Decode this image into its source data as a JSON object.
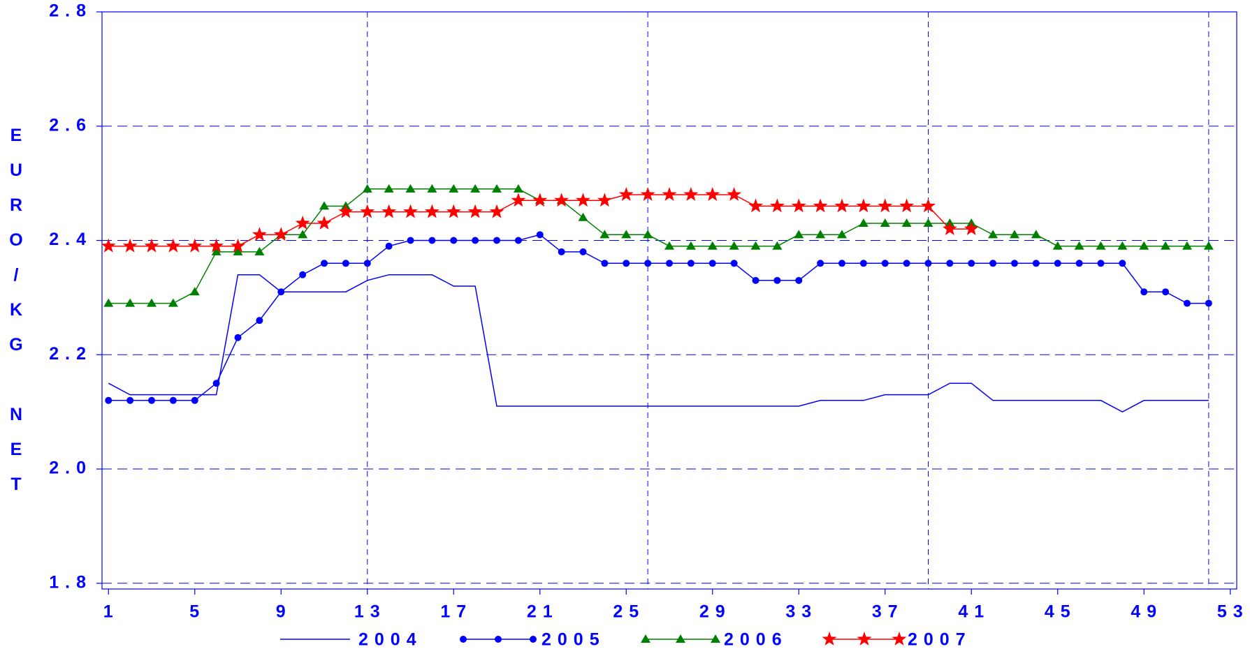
{
  "chart_data": {
    "type": "line",
    "ylabel": "EURO/KG NET",
    "x": [
      1,
      2,
      3,
      4,
      5,
      6,
      7,
      8,
      9,
      10,
      11,
      12,
      13,
      14,
      15,
      16,
      17,
      18,
      19,
      20,
      21,
      22,
      23,
      24,
      25,
      26,
      27,
      28,
      29,
      30,
      31,
      32,
      33,
      34,
      35,
      36,
      37,
      38,
      39,
      40,
      41,
      42,
      43,
      44,
      45,
      46,
      47,
      48,
      49,
      50,
      51,
      52
    ],
    "xlim": [
      0.7,
      53.3
    ],
    "xticks": [
      1,
      5,
      9,
      13,
      17,
      21,
      25,
      29,
      33,
      37,
      41,
      45,
      49,
      53
    ],
    "xgrid": [
      13,
      26,
      39,
      52
    ],
    "ylim": [
      1.79,
      2.8
    ],
    "yticks": [
      1.8,
      {
        "value": 2.0,
        "label": "2.0"
      },
      2.2,
      2.4,
      2.6,
      2.8
    ],
    "grid": true,
    "legend": "bottom",
    "series": [
      {
        "name": "2004",
        "color": "#0000ff",
        "marker": "none",
        "values": [
          2.15,
          2.13,
          2.13,
          2.13,
          2.13,
          2.13,
          2.34,
          2.34,
          2.31,
          2.31,
          2.31,
          2.31,
          2.33,
          2.34,
          2.34,
          2.34,
          2.32,
          2.32,
          2.11,
          2.11,
          2.11,
          2.11,
          2.11,
          2.11,
          2.11,
          2.11,
          2.11,
          2.11,
          2.11,
          2.11,
          2.11,
          2.11,
          2.11,
          2.12,
          2.12,
          2.12,
          2.13,
          2.13,
          2.13,
          2.15,
          2.15,
          2.12,
          2.12,
          2.12,
          2.12,
          2.12,
          2.12,
          2.1,
          2.12,
          2.12,
          2.12,
          2.12
        ]
      },
      {
        "name": "2005",
        "color": "#0000ff",
        "marker": "circle",
        "values": [
          2.12,
          2.12,
          2.12,
          2.12,
          2.12,
          2.15,
          2.23,
          2.26,
          2.31,
          2.34,
          2.36,
          2.36,
          2.36,
          2.39,
          2.4,
          2.4,
          2.4,
          2.4,
          2.4,
          2.4,
          2.41,
          2.38,
          2.38,
          2.36,
          2.36,
          2.36,
          2.36,
          2.36,
          2.36,
          2.36,
          2.33,
          2.33,
          2.33,
          2.36,
          2.36,
          2.36,
          2.36,
          2.36,
          2.36,
          2.36,
          2.36,
          2.36,
          2.36,
          2.36,
          2.36,
          2.36,
          2.36,
          2.36,
          2.31,
          2.31,
          2.29,
          2.29
        ]
      },
      {
        "name": "2006",
        "color": "#008000",
        "marker": "triangle",
        "values": [
          2.29,
          2.29,
          2.29,
          2.29,
          2.31,
          2.38,
          2.38,
          2.38,
          2.41,
          2.41,
          2.46,
          2.46,
          2.49,
          2.49,
          2.49,
          2.49,
          2.49,
          2.49,
          2.49,
          2.49,
          2.47,
          2.47,
          2.44,
          2.41,
          2.41,
          2.41,
          2.39,
          2.39,
          2.39,
          2.39,
          2.39,
          2.39,
          2.41,
          2.41,
          2.41,
          2.43,
          2.43,
          2.43,
          2.43,
          2.43,
          2.43,
          2.41,
          2.41,
          2.41,
          2.39,
          2.39,
          2.39,
          2.39,
          2.39,
          2.39,
          2.39,
          2.39
        ]
      },
      {
        "name": "2007",
        "color": "#ff0000",
        "marker": "star",
        "values": [
          2.39,
          2.39,
          2.39,
          2.39,
          2.39,
          2.39,
          2.39,
          2.41,
          2.41,
          2.43,
          2.43,
          2.45,
          2.45,
          2.45,
          2.45,
          2.45,
          2.45,
          2.45,
          2.45,
          2.47,
          2.47,
          2.47,
          2.47,
          2.47,
          2.48,
          2.48,
          2.48,
          2.48,
          2.48,
          2.48,
          2.46,
          2.46,
          2.46,
          2.46,
          2.46,
          2.46,
          2.46,
          2.46,
          2.46,
          2.42,
          2.42,
          null,
          null,
          null,
          null,
          null,
          null,
          null,
          null,
          null,
          null,
          null
        ]
      }
    ]
  }
}
